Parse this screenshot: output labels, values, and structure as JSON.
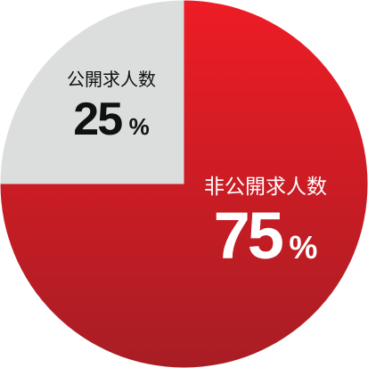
{
  "chart_data": {
    "type": "pie",
    "title": "",
    "slices": [
      {
        "label": "非公開求人数",
        "value": 75,
        "value_text": "75",
        "unit": "%",
        "color_top": "#ee1c25",
        "color_bottom": "#a81d24",
        "text_color": "#ffffff"
      },
      {
        "label": "公開求人数",
        "value": 25,
        "value_text": "25",
        "unit": "%",
        "color": "#dcdddd",
        "text_color": "#111111"
      }
    ],
    "start_angle_deg": 0,
    "direction": "clockwise",
    "legend": "none"
  }
}
